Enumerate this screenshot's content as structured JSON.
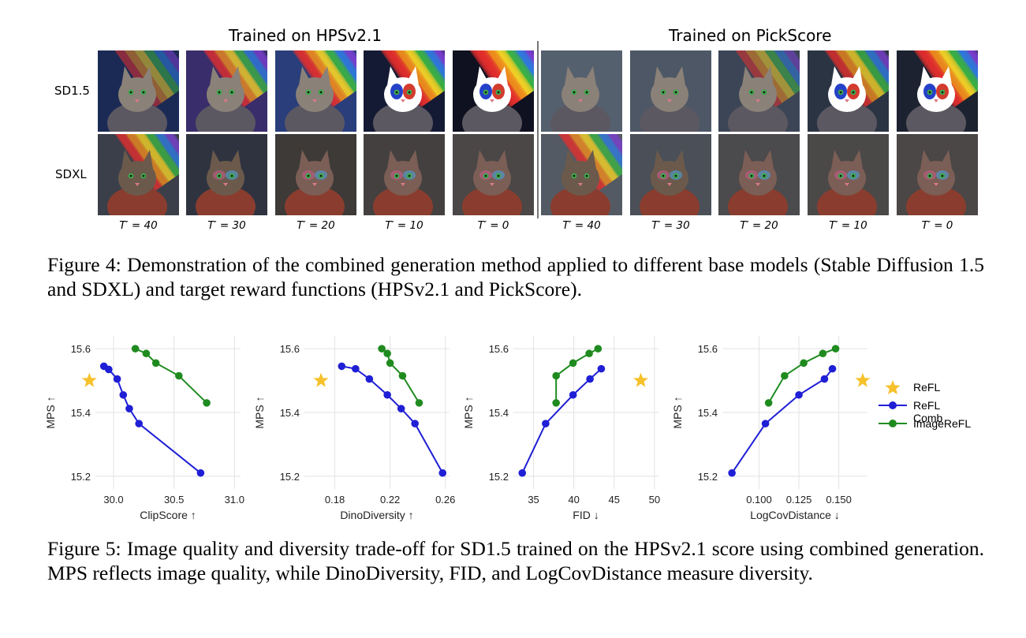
{
  "figure4": {
    "left_title": "Trained on HPSv2.1",
    "right_title": "Trained on PickScore",
    "row_labels": [
      "SD1.5",
      "SDXL"
    ],
    "t_labels": [
      "T′ = 40",
      "T′ = 30",
      "T′ = 20",
      "T′ = 10",
      "T′ = 0"
    ],
    "caption": "Figure 4: Demonstration of the combined generation method applied to different base models (Stable Diffusion 1.5 and SDXL) and target reward functions (HPSv2.1 and PickScore)."
  },
  "figure5": {
    "caption": "Figure 5: Image quality and diversity trade-off for SD1.5 trained on the HPSv2.1 score using combined generation. MPS reflects image quality, while DinoDiversity, FID, and LogCovDistance measure diversity.",
    "legend": [
      {
        "label": "ReFL",
        "color": "#f6c12b",
        "marker": "star"
      },
      {
        "label": "ReFL Comb",
        "color": "#1f1fd6",
        "marker": "circle"
      },
      {
        "label": "ImageReFL",
        "color": "#1f8b1f",
        "marker": "circle"
      }
    ]
  },
  "chart_data": [
    {
      "type": "line",
      "xlabel": "ClipScore ↑",
      "ylabel": "MPS ↑",
      "xlim": [
        29.85,
        31.05
      ],
      "ylim": [
        15.16,
        15.64
      ],
      "xticks": [
        30.0,
        30.5,
        31.0
      ],
      "xtick_labels": [
        "30.0",
        "30.5",
        "31.0"
      ],
      "yticks": [
        15.2,
        15.4,
        15.6
      ],
      "ytick_labels": [
        "15.2",
        "15.4",
        "15.6"
      ],
      "series": [
        {
          "name": "ReFL",
          "marker": "star",
          "color": "#f6c12b",
          "x": [
            29.8
          ],
          "y": [
            15.5
          ]
        },
        {
          "name": "ReFL Comb",
          "marker": "circle",
          "color": "#1f1fd6",
          "x": [
            29.92,
            29.96,
            30.03,
            30.08,
            30.13,
            30.21,
            30.72
          ],
          "y": [
            15.545,
            15.535,
            15.505,
            15.455,
            15.412,
            15.365,
            15.21
          ]
        },
        {
          "name": "ImageReFL",
          "marker": "circle",
          "color": "#1f8b1f",
          "x": [
            30.18,
            30.27,
            30.35,
            30.54,
            30.77
          ],
          "y": [
            15.6,
            15.585,
            15.555,
            15.515,
            15.43
          ]
        }
      ]
    },
    {
      "type": "line",
      "xlabel": "DinoDiversity ↑",
      "ylabel": "MPS ↑",
      "xlim": [
        0.158,
        0.263
      ],
      "ylim": [
        15.16,
        15.64
      ],
      "xticks": [
        0.18,
        0.22,
        0.26
      ],
      "xtick_labels": [
        "0.18",
        "0.22",
        "0.26"
      ],
      "yticks": [
        15.2,
        15.4,
        15.6
      ],
      "ytick_labels": [
        "15.2",
        "15.4",
        "15.6"
      ],
      "series": [
        {
          "name": "ReFL",
          "marker": "star",
          "color": "#f6c12b",
          "x": [
            0.17
          ],
          "y": [
            15.5
          ]
        },
        {
          "name": "ReFL Comb",
          "marker": "circle",
          "color": "#1f1fd6",
          "x": [
            0.185,
            0.195,
            0.205,
            0.218,
            0.228,
            0.238,
            0.258
          ],
          "y": [
            15.545,
            15.537,
            15.505,
            15.455,
            15.412,
            15.365,
            15.21
          ]
        },
        {
          "name": "ImageReFL",
          "marker": "circle",
          "color": "#1f8b1f",
          "x": [
            0.214,
            0.218,
            0.22,
            0.229,
            0.241
          ],
          "y": [
            15.6,
            15.585,
            15.555,
            15.515,
            15.43
          ]
        }
      ]
    },
    {
      "type": "line",
      "xlabel": "FID ↓",
      "ylabel": "MPS ↑",
      "xlim": [
        32.5,
        50.5
      ],
      "ylim": [
        15.16,
        15.64
      ],
      "xticks": [
        35,
        40,
        45,
        50
      ],
      "xtick_labels": [
        "35",
        "40",
        "45",
        "50"
      ],
      "yticks": [
        15.2,
        15.4,
        15.6
      ],
      "ytick_labels": [
        "15.2",
        "15.4",
        "15.6"
      ],
      "series": [
        {
          "name": "ReFL",
          "marker": "star",
          "color": "#f6c12b",
          "x": [
            48.3
          ],
          "y": [
            15.5
          ]
        },
        {
          "name": "ReFL Comb",
          "marker": "circle",
          "color": "#1f1fd6",
          "x": [
            33.6,
            36.5,
            39.9,
            42.0,
            43.4
          ],
          "y": [
            15.21,
            15.365,
            15.455,
            15.505,
            15.537
          ]
        },
        {
          "name": "ImageReFL",
          "marker": "circle",
          "color": "#1f8b1f",
          "x": [
            37.8,
            37.8,
            39.9,
            41.9,
            43.0
          ],
          "y": [
            15.43,
            15.515,
            15.555,
            15.585,
            15.6
          ]
        }
      ]
    },
    {
      "type": "line",
      "xlabel": "LogCovDistance ↓",
      "ylabel": "MPS ↑",
      "xlim": [
        0.077,
        0.168
      ],
      "ylim": [
        15.16,
        15.64
      ],
      "xticks": [
        0.1,
        0.125,
        0.15
      ],
      "xtick_labels": [
        "0.100",
        "0.125",
        "0.150"
      ],
      "yticks": [
        15.2,
        15.4,
        15.6
      ],
      "ytick_labels": [
        "15.2",
        "15.4",
        "15.6"
      ],
      "series": [
        {
          "name": "ReFL",
          "marker": "star",
          "color": "#f6c12b",
          "x": [
            0.165
          ],
          "y": [
            15.5
          ]
        },
        {
          "name": "ReFL Comb",
          "marker": "circle",
          "color": "#1f1fd6",
          "x": [
            0.083,
            0.104,
            0.125,
            0.141,
            0.146
          ],
          "y": [
            15.21,
            15.365,
            15.455,
            15.505,
            15.537
          ]
        },
        {
          "name": "ImageReFL",
          "marker": "circle",
          "color": "#1f8b1f",
          "x": [
            0.106,
            0.116,
            0.128,
            0.14,
            0.148
          ],
          "y": [
            15.43,
            15.515,
            15.555,
            15.585,
            15.6
          ]
        }
      ]
    }
  ]
}
